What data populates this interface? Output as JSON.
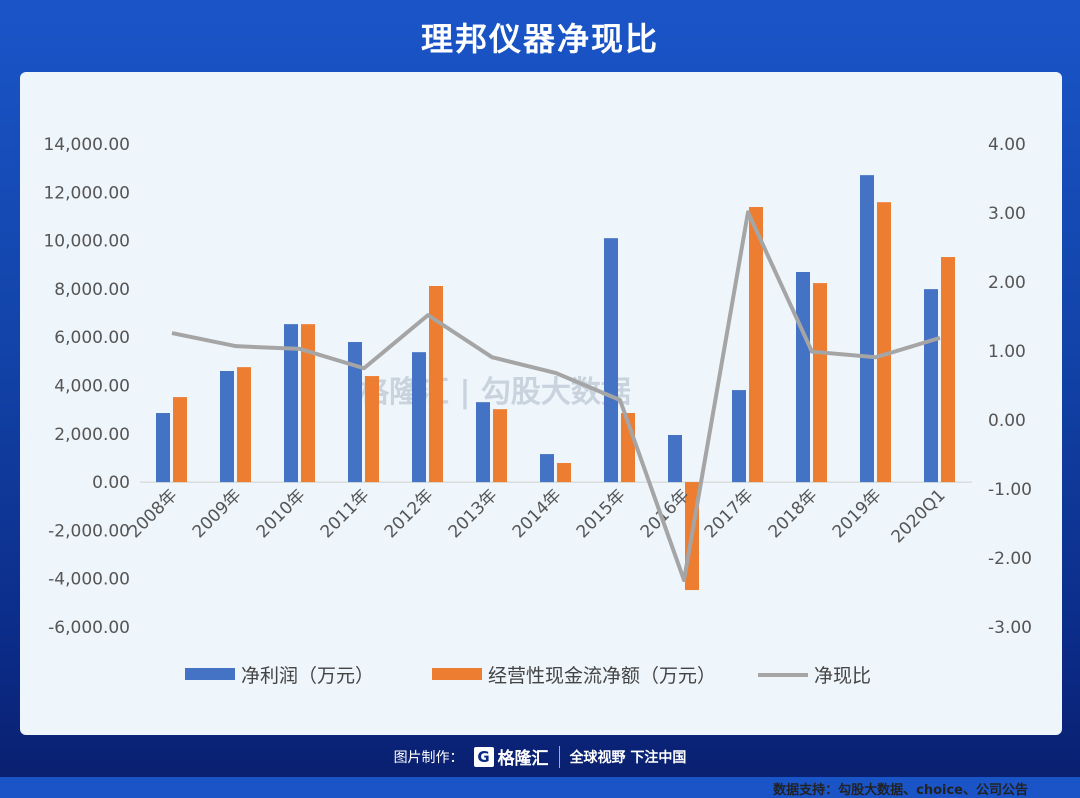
{
  "title": "理邦仪器净现比",
  "source": "数据支持：勾股大数据、choice、公司公告",
  "watermark": "格隆汇 | 勾股大数据",
  "footer": {
    "label": "图片制作：",
    "logo": "格隆汇",
    "slogan": "全球视野 下注中国"
  },
  "chart_data": {
    "type": "bar+line",
    "categories": [
      "2008年",
      "2009年",
      "2010年",
      "2011年",
      "2012年",
      "2013年",
      "2014年",
      "2015年",
      "2016年",
      "2017年",
      "2018年",
      "2019年",
      "2020Q1"
    ],
    "series": [
      {
        "name": "净利润（万元）",
        "type": "bar",
        "axis": "left",
        "color": "#4472c4",
        "values": [
          2860,
          4600,
          6540,
          5800,
          5380,
          3310,
          1160,
          10100,
          1950,
          3810,
          8700,
          12710,
          7990
        ]
      },
      {
        "name": "经营性现金流净额（万元）",
        "type": "bar",
        "axis": "left",
        "color": "#ed7d31",
        "values": [
          3520,
          4760,
          6540,
          4390,
          8120,
          3020,
          790,
          2860,
          -4470,
          11390,
          8240,
          11590,
          9320
        ]
      },
      {
        "name": "净现比",
        "type": "line",
        "axis": "right",
        "color": "#a5a5a5",
        "values": [
          1.26,
          1.07,
          1.03,
          0.75,
          1.52,
          0.91,
          0.68,
          0.29,
          -2.32,
          3.01,
          0.99,
          0.91,
          1.19
        ]
      }
    ],
    "left_axis": {
      "ylim": [
        -6000,
        14000
      ],
      "ticks": [
        "14,000.00",
        "12,000.00",
        "10,000.00",
        "8,000.00",
        "6,000.00",
        "4,000.00",
        "2,000.00",
        "0.00",
        "-2,000.00",
        "-4,000.00",
        "-6,000.00"
      ]
    },
    "right_axis": {
      "ylim": [
        -3,
        4
      ],
      "ticks": [
        "4.00",
        "3.00",
        "2.00",
        "1.00",
        "0.00",
        "-1.00",
        "-2.00",
        "-3.00"
      ]
    },
    "grid": false,
    "legend": "bottom"
  }
}
